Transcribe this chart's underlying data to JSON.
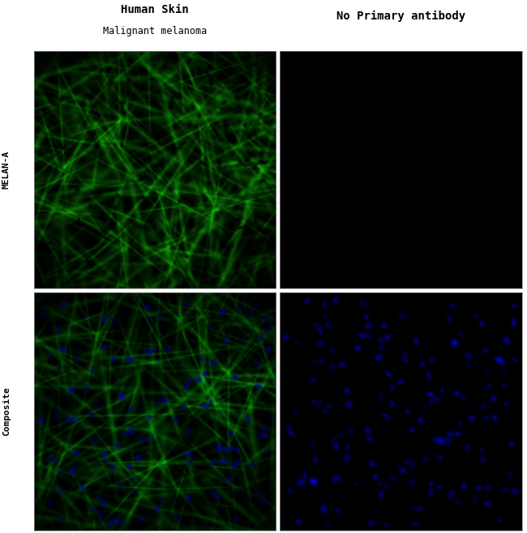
{
  "title_left_bold": "Human Skin",
  "title_left_sub": "Malignant melanoma",
  "title_right_bold": "No Primary antibody",
  "row_label_top": "MELAN-A",
  "row_label_bottom": "Composite",
  "bg_color": "#ffffff",
  "title_fontsize": 10,
  "subtitle_fontsize": 8.5,
  "row_label_fontsize": 8,
  "fig_width": 6.5,
  "fig_height": 6.58,
  "seed": 12345
}
